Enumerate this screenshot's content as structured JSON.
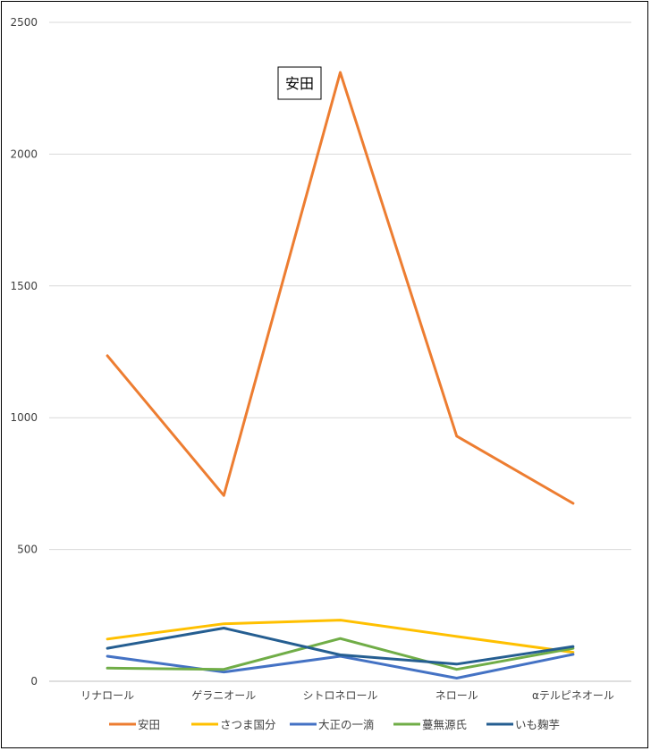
{
  "chart_data": {
    "type": "line",
    "categories": [
      "リナロール",
      "ゲラニオール",
      "シトロネロール",
      "ネロール",
      "αテルピネオール"
    ],
    "ylim": [
      0,
      2500
    ],
    "yticks": [
      0,
      500,
      1000,
      1500,
      2000,
      2500
    ],
    "grid": true,
    "legend_position": "bottom",
    "series": [
      {
        "name": "安田",
        "color": "#ED7D31",
        "values": [
          1235,
          705,
          2310,
          930,
          675
        ]
      },
      {
        "name": "さつま国分",
        "color": "#FFC000",
        "values": [
          160,
          218,
          232,
          170,
          110
        ]
      },
      {
        "name": "大正の一滴",
        "color": "#4472C4",
        "values": [
          95,
          35,
          95,
          12,
          102
        ]
      },
      {
        "name": "蔓無源氏",
        "color": "#70AD47",
        "values": [
          50,
          45,
          162,
          45,
          125
        ]
      },
      {
        "name": "いも麹芋",
        "color": "#255E91",
        "values": [
          125,
          202,
          100,
          65,
          132
        ]
      }
    ],
    "annotation": {
      "text": "安田"
    }
  }
}
